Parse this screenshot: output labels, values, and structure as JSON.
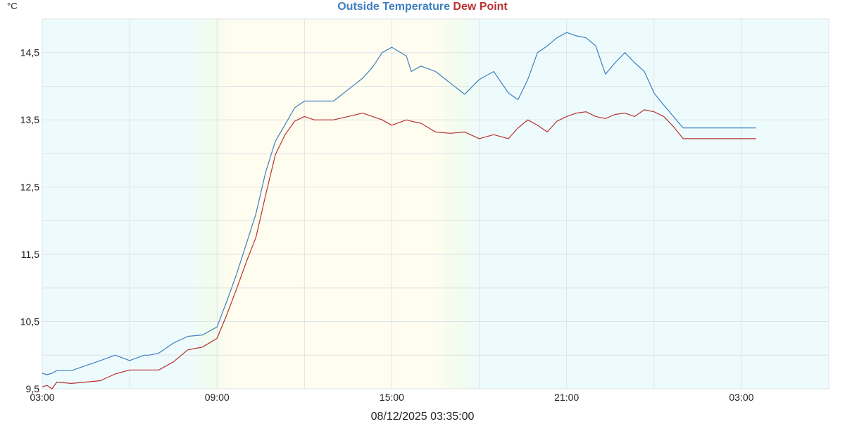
{
  "chart_data": {
    "type": "line",
    "title_series": [
      "Outside Temperature",
      "Dew Point"
    ],
    "y_unit": "°C",
    "ylim": [
      9.5,
      15.0
    ],
    "yticks": [
      "9,5",
      "10,5",
      "11,5",
      "12,5",
      "13,5",
      "14,5"
    ],
    "ytick_values": [
      9.5,
      10.5,
      11.5,
      12.5,
      13.5,
      14.5
    ],
    "xlim": [
      "2025-08-11 03:00",
      "2025-08-12 06:00"
    ],
    "xticks": [
      "03:00",
      "09:00",
      "15:00",
      "21:00",
      "03:00"
    ],
    "xtick_values": [
      "2025-08-11 03:00",
      "2025-08-11 09:00",
      "2025-08-11 15:00",
      "2025-08-11 21:00",
      "2025-08-12 03:00"
    ],
    "grid": true,
    "timestamp": "08/12/2025 03:35:00",
    "colors": {
      "Outside Temperature": "#3f7fbf",
      "Dew Point": "#b83232"
    },
    "series": [
      {
        "name": "Outside Temperature",
        "x": [
          "2025-08-11 03:00",
          "2025-08-11 03:10",
          "2025-08-11 03:20",
          "2025-08-11 03:30",
          "2025-08-11 04:00",
          "2025-08-11 05:00",
          "2025-08-11 05:30",
          "2025-08-11 06:00",
          "2025-08-11 06:30",
          "2025-08-11 06:40",
          "2025-08-11 07:00",
          "2025-08-11 07:30",
          "2025-08-11 08:00",
          "2025-08-11 08:30",
          "2025-08-11 09:00",
          "2025-08-11 09:20",
          "2025-08-11 09:40",
          "2025-08-11 10:00",
          "2025-08-11 10:20",
          "2025-08-11 10:40",
          "2025-08-11 11:00",
          "2025-08-11 11:20",
          "2025-08-11 11:40",
          "2025-08-11 12:00",
          "2025-08-11 12:20",
          "2025-08-11 12:40",
          "2025-08-11 13:00",
          "2025-08-11 13:30",
          "2025-08-11 14:00",
          "2025-08-11 14:20",
          "2025-08-11 14:40",
          "2025-08-11 15:00",
          "2025-08-11 15:30",
          "2025-08-11 15:40",
          "2025-08-11 16:00",
          "2025-08-11 16:30",
          "2025-08-11 17:00",
          "2025-08-11 17:30",
          "2025-08-11 18:00",
          "2025-08-11 18:30",
          "2025-08-11 19:00",
          "2025-08-11 19:20",
          "2025-08-11 19:40",
          "2025-08-11 20:00",
          "2025-08-11 20:20",
          "2025-08-11 20:40",
          "2025-08-11 21:00",
          "2025-08-11 21:20",
          "2025-08-11 21:40",
          "2025-08-11 22:00",
          "2025-08-11 22:20",
          "2025-08-11 22:40",
          "2025-08-11 23:00",
          "2025-08-11 23:20",
          "2025-08-11 23:40",
          "2025-08-12 00:00",
          "2025-08-12 00:20",
          "2025-08-12 00:40",
          "2025-08-12 01:00",
          "2025-08-12 01:30",
          "2025-08-12 02:00",
          "2025-08-12 02:30",
          "2025-08-12 03:00",
          "2025-08-12 03:30"
        ],
        "values": [
          9.73,
          9.71,
          9.73,
          9.77,
          9.77,
          9.92,
          10.0,
          9.92,
          10.0,
          10.0,
          10.03,
          10.18,
          10.28,
          10.3,
          10.42,
          10.8,
          11.2,
          11.65,
          12.1,
          12.72,
          13.18,
          13.43,
          13.68,
          13.78,
          13.78,
          13.78,
          13.78,
          13.95,
          14.12,
          14.28,
          14.5,
          14.58,
          14.45,
          14.22,
          14.3,
          14.22,
          14.05,
          13.88,
          14.1,
          14.22,
          13.9,
          13.8,
          14.1,
          14.5,
          14.6,
          14.72,
          14.8,
          14.75,
          14.72,
          14.6,
          14.18,
          14.35,
          14.5,
          14.35,
          14.22,
          13.9,
          13.72,
          13.55,
          13.38,
          13.38,
          13.38,
          13.38,
          13.38,
          13.38
        ]
      },
      {
        "name": "Dew Point",
        "x": [
          "2025-08-11 03:00",
          "2025-08-11 03:10",
          "2025-08-11 03:20",
          "2025-08-11 03:30",
          "2025-08-11 04:00",
          "2025-08-11 05:00",
          "2025-08-11 05:30",
          "2025-08-11 06:00",
          "2025-08-11 06:30",
          "2025-08-11 06:40",
          "2025-08-11 07:00",
          "2025-08-11 07:30",
          "2025-08-11 08:00",
          "2025-08-11 08:30",
          "2025-08-11 09:00",
          "2025-08-11 09:20",
          "2025-08-11 09:40",
          "2025-08-11 10:00",
          "2025-08-11 10:20",
          "2025-08-11 10:40",
          "2025-08-11 11:00",
          "2025-08-11 11:20",
          "2025-08-11 11:40",
          "2025-08-11 12:00",
          "2025-08-11 12:20",
          "2025-08-11 12:40",
          "2025-08-11 13:00",
          "2025-08-11 13:30",
          "2025-08-11 14:00",
          "2025-08-11 14:20",
          "2025-08-11 14:40",
          "2025-08-11 15:00",
          "2025-08-11 15:30",
          "2025-08-11 15:40",
          "2025-08-11 16:00",
          "2025-08-11 16:30",
          "2025-08-11 17:00",
          "2025-08-11 17:30",
          "2025-08-11 18:00",
          "2025-08-11 18:30",
          "2025-08-11 19:00",
          "2025-08-11 19:20",
          "2025-08-11 19:40",
          "2025-08-11 20:00",
          "2025-08-11 20:20",
          "2025-08-11 20:40",
          "2025-08-11 21:00",
          "2025-08-11 21:20",
          "2025-08-11 21:40",
          "2025-08-11 22:00",
          "2025-08-11 22:20",
          "2025-08-11 22:40",
          "2025-08-11 23:00",
          "2025-08-11 23:20",
          "2025-08-11 23:40",
          "2025-08-12 00:00",
          "2025-08-12 00:20",
          "2025-08-12 00:40",
          "2025-08-12 01:00",
          "2025-08-12 01:30",
          "2025-08-12 02:00",
          "2025-08-12 02:30",
          "2025-08-12 03:00",
          "2025-08-12 03:30"
        ],
        "values": [
          9.53,
          9.55,
          9.5,
          9.6,
          9.58,
          9.62,
          9.72,
          9.78,
          9.78,
          9.78,
          9.78,
          9.9,
          10.08,
          10.12,
          10.25,
          10.6,
          10.98,
          11.38,
          11.75,
          12.38,
          12.98,
          13.28,
          13.48,
          13.55,
          13.5,
          13.5,
          13.5,
          13.55,
          13.6,
          13.55,
          13.5,
          13.42,
          13.5,
          13.48,
          13.45,
          13.32,
          13.3,
          13.32,
          13.22,
          13.28,
          13.22,
          13.38,
          13.5,
          13.42,
          13.32,
          13.48,
          13.55,
          13.6,
          13.62,
          13.55,
          13.52,
          13.58,
          13.6,
          13.55,
          13.65,
          13.62,
          13.55,
          13.4,
          13.22,
          13.22,
          13.22,
          13.22,
          13.22,
          13.22
        ]
      }
    ]
  }
}
